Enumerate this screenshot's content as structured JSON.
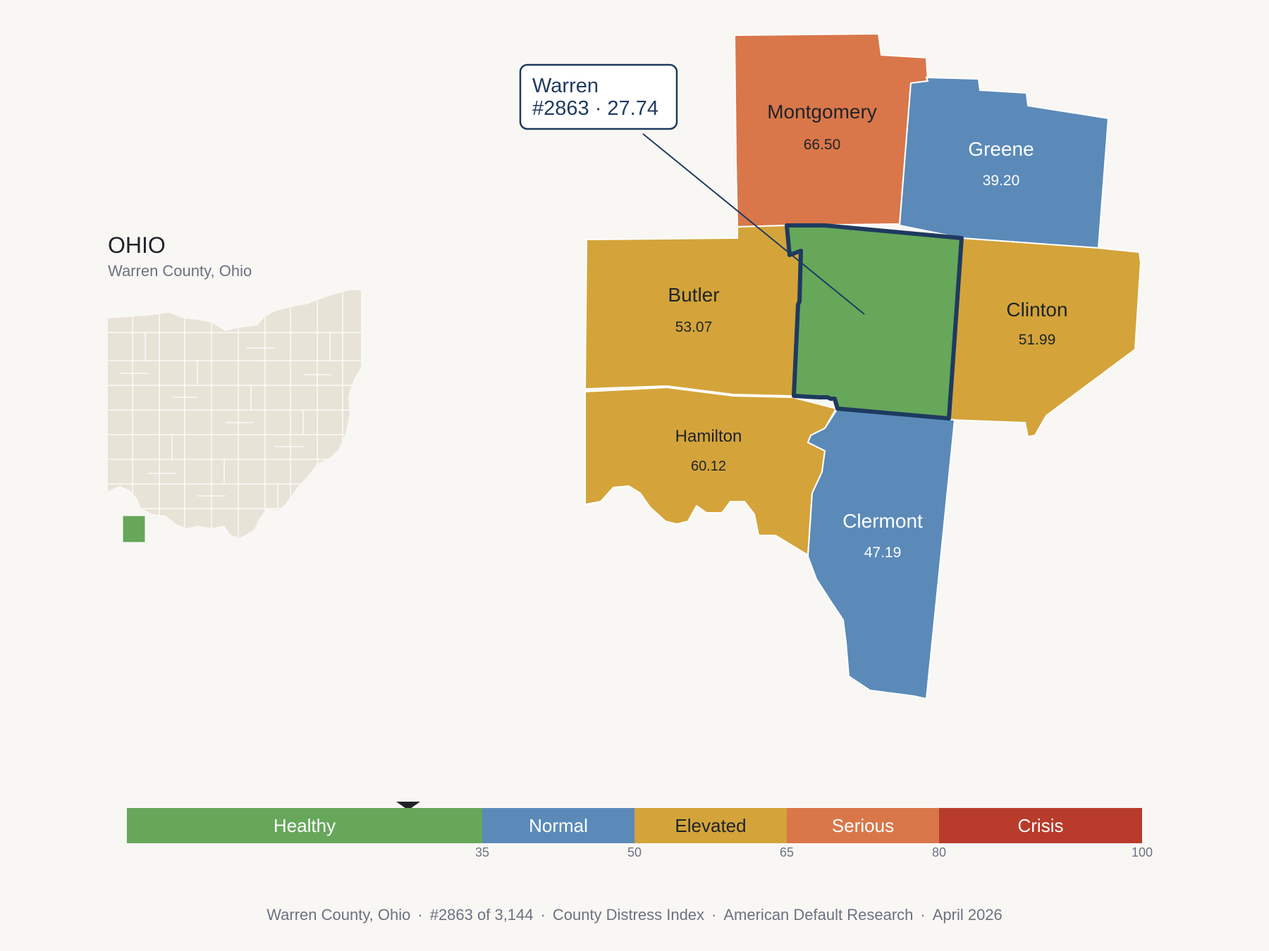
{
  "state": {
    "name": "OHIO",
    "subtitle": "Warren County, Ohio",
    "highlight_color": "#66a75a",
    "county_color": "#e8e3d7"
  },
  "callout": {
    "line1": "Warren",
    "line2": "#2863 · 27.74"
  },
  "counties": [
    {
      "name": "Montgomery",
      "score": "66.50",
      "color": "#d9774a"
    },
    {
      "name": "Greene",
      "score": "39.20",
      "color": "#5b8ab9"
    },
    {
      "name": "Butler",
      "score": "53.07",
      "color": "#d4a43a"
    },
    {
      "name": "Clinton",
      "score": "51.99",
      "color": "#d4a43a"
    },
    {
      "name": "Hamilton",
      "score": "60.12",
      "color": "#d4a43a"
    },
    {
      "name": "Clermont",
      "score": "47.19",
      "color": "#5b8ab9"
    },
    {
      "name": "Warren",
      "score": "27.74",
      "color": "#66a75a",
      "rank": "#2863"
    }
  ],
  "scale": {
    "segments": [
      {
        "label": "Healthy",
        "from": 0,
        "to": 35,
        "color": "#66a75a"
      },
      {
        "label": "Normal",
        "from": 35,
        "to": 50,
        "color": "#5b8ab9"
      },
      {
        "label": "Elevated",
        "from": 50,
        "to": 65,
        "color": "#d4a43a"
      },
      {
        "label": "Serious",
        "from": 65,
        "to": 80,
        "color": "#d9774a"
      },
      {
        "label": "Crisis",
        "from": 80,
        "to": 100,
        "color": "#b83b2b"
      }
    ],
    "ticks": [
      "35",
      "50",
      "65",
      "80",
      "100"
    ],
    "marker_value": 27.74
  },
  "footer": {
    "county": "Warren County, Ohio",
    "rank": "#2863 of 3,144",
    "index": "County Distress Index",
    "org": "American Default Research",
    "date": "April 2026"
  }
}
